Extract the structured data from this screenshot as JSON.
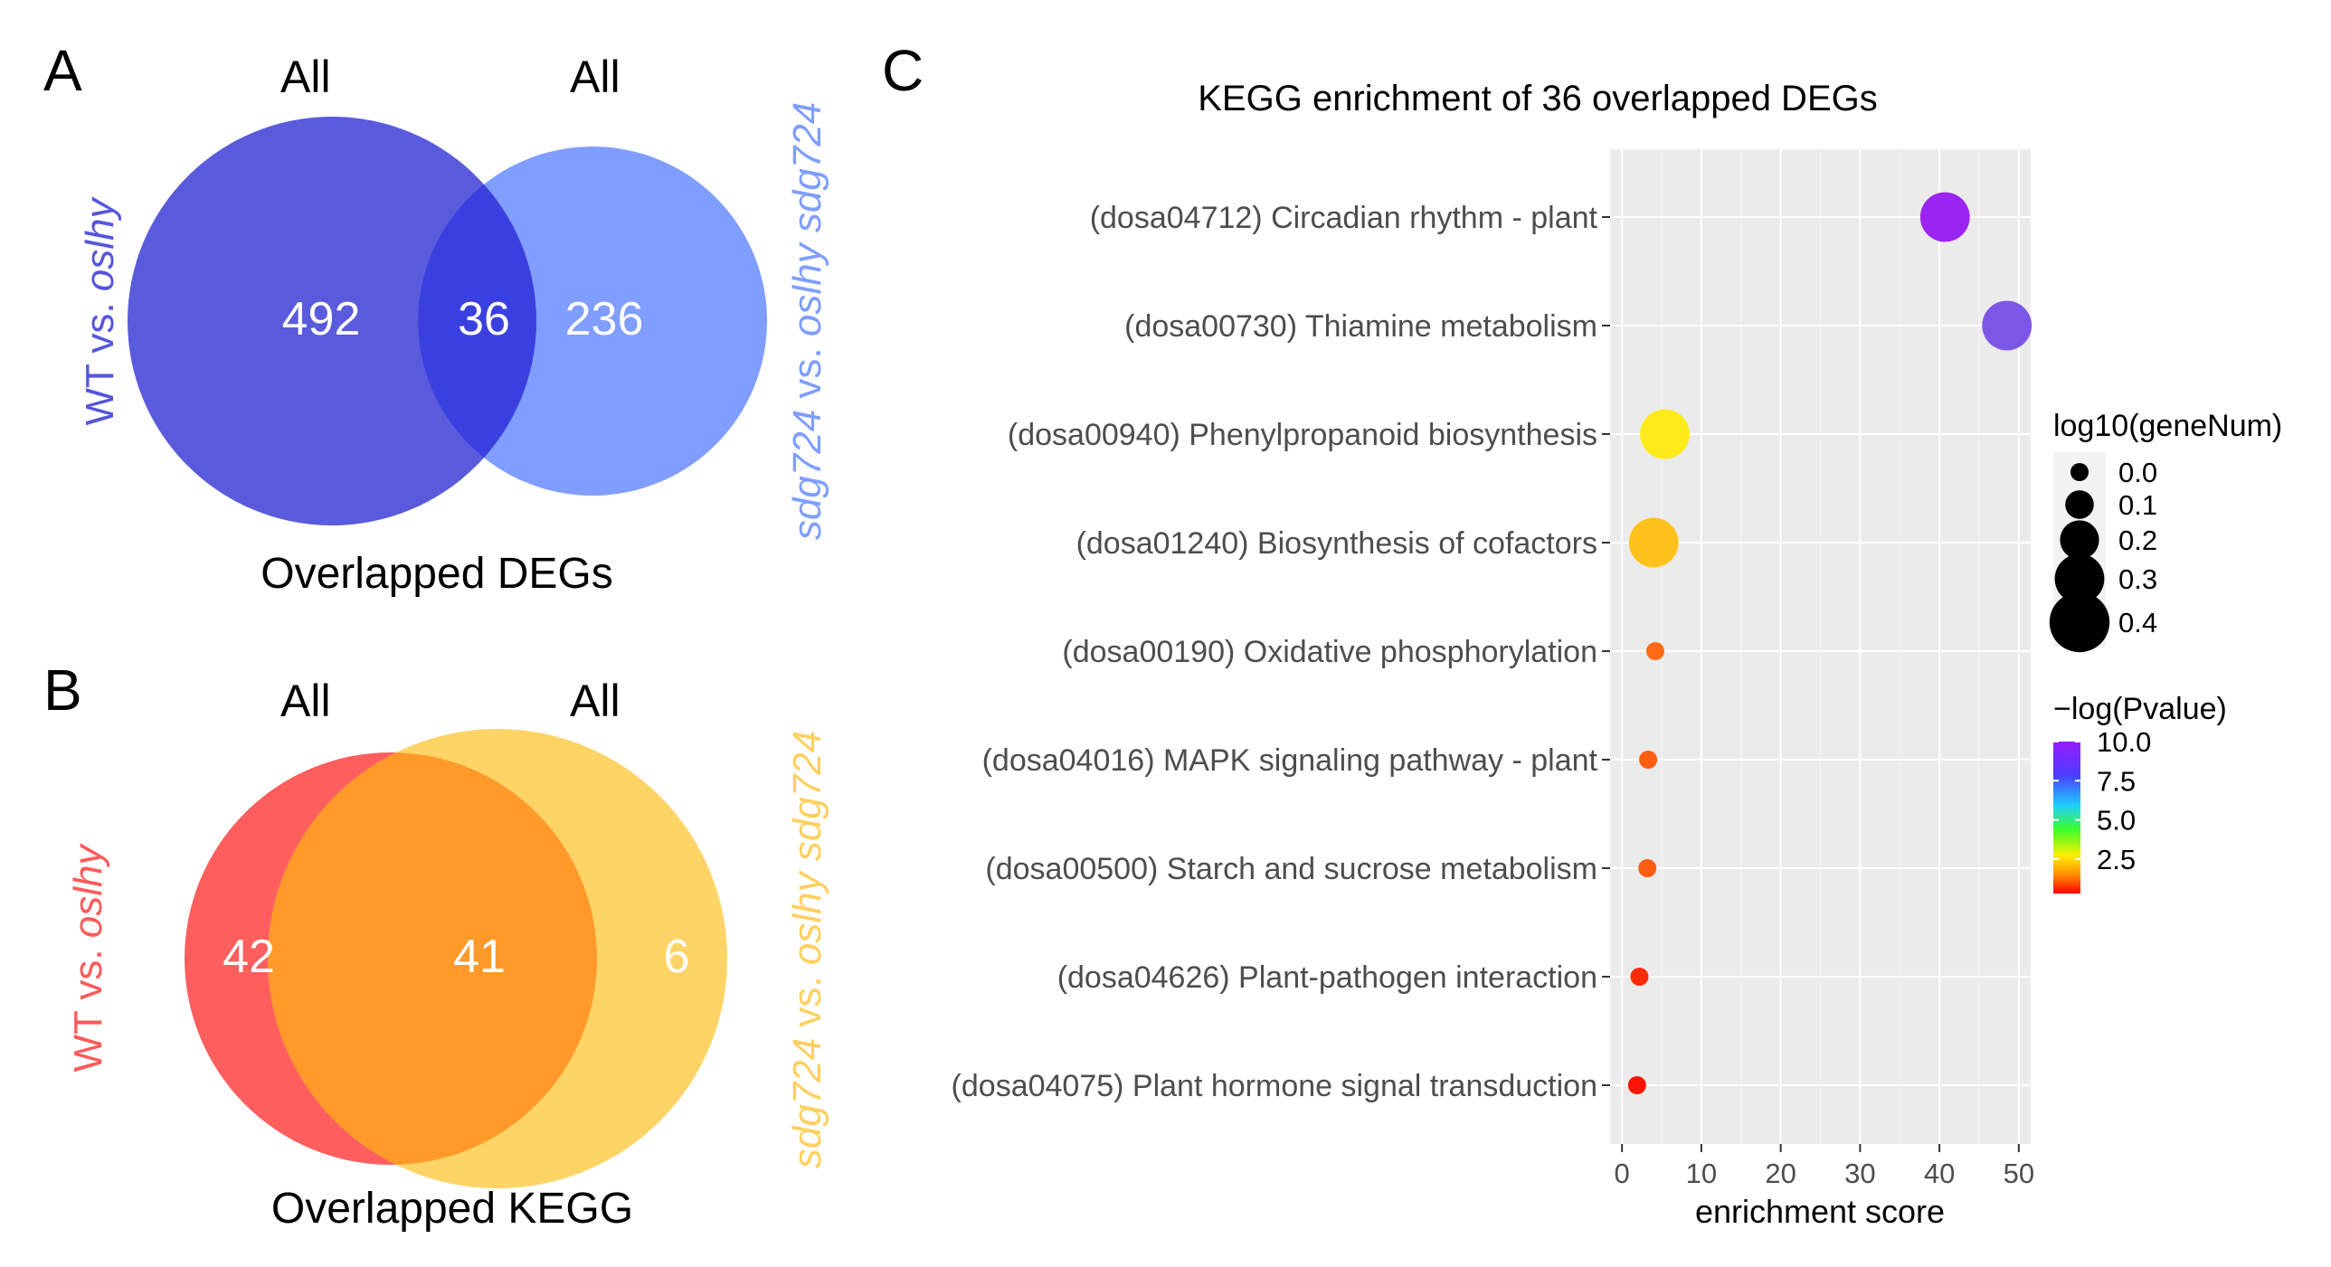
{
  "panel_a": {
    "letter": "A",
    "left_top_label": "All",
    "right_top_label": "All",
    "left_only": "492",
    "overlap": "36",
    "right_only": "236",
    "bottom_label": "Overlapped DEGs",
    "left_label_plain": "WT vs. ",
    "left_label_italic": "oslhy",
    "right_label_italic1": "sdg724",
    "right_label_plain": " vs. ",
    "right_label_italic2": "oslhy sdg724",
    "colors": {
      "left": "#5a5adc",
      "right": "#7f9eff",
      "overlap": "#3a40e0",
      "left_text": "#5555dd",
      "right_text": "#7f9eff"
    }
  },
  "panel_b": {
    "letter": "B",
    "left_top_label": "All",
    "right_top_label": "All",
    "left_only": "42",
    "overlap": "41",
    "right_only": "6",
    "bottom_label": "Overlapped KEGG",
    "left_label_plain": "WT vs. ",
    "left_label_italic": "oslhy",
    "right_label_italic1": "sdg724",
    "right_label_plain": " vs. ",
    "right_label_italic2": "oslhy sdg724",
    "colors": {
      "left": "#ff5e5e",
      "right": "#ffd466",
      "overlap": "#ff9a2a",
      "left_text": "#ff5a5a",
      "right_text": "#ffd060"
    }
  },
  "panel_c": {
    "letter": "C",
    "chart_data": {
      "type": "scatter",
      "title": "KEGG enrichment of 36 overlapped DEGs",
      "xlabel": "enrichment score",
      "ylabel": "",
      "xlim": [
        -1.5,
        51.5
      ],
      "xticks": [
        "0",
        "10",
        "20",
        "30",
        "40",
        "50"
      ],
      "categories": [
        "(dosa04712) Circadian rhythm - plant",
        "(dosa00730) Thiamine metabolism",
        "(dosa00940) Phenylpropanoid biosynthesis",
        "(dosa01240) Biosynthesis of cofactors",
        "(dosa00190) Oxidative phosphorylation",
        "(dosa04016) MAPK signaling pathway - plant",
        "(dosa00500) Starch and sucrose metabolism",
        "(dosa04626) Plant-pathogen interaction",
        "(dosa04075) Plant hormone signal transduction"
      ],
      "enrichment_score": [
        40.7,
        48.5,
        5.4,
        4.0,
        4.2,
        3.3,
        3.2,
        2.2,
        1.9
      ],
      "log10_geneNum": [
        0.3,
        0.3,
        0.3,
        0.3,
        0.0,
        0.0,
        0.0,
        0.0,
        0.0
      ],
      "neg_log_pvalue": [
        9.4,
        8.6,
        2.3,
        1.9,
        1.1,
        0.9,
        0.9,
        0.6,
        0.3
      ],
      "colors": [
        "#9b24f2",
        "#7c57e6",
        "#ffeb1a",
        "#ffc21d",
        "#ff6a16",
        "#ff5e12",
        "#ff5d12",
        "#ff2b08",
        "#ff1205"
      ],
      "size_legend": {
        "title": "log10(geneNum)",
        "labels": [
          "0.0",
          "0.1",
          "0.2",
          "0.3",
          "0.4"
        ],
        "values": [
          0.0,
          0.1,
          0.2,
          0.3,
          0.4
        ]
      },
      "color_legend": {
        "title": "−log(Pvalue)",
        "labels": [
          "10.0",
          "7.5",
          "5.0",
          "2.5"
        ],
        "values": [
          10.0,
          7.5,
          5.0,
          2.5
        ],
        "range": [
          0.3,
          10.0
        ]
      },
      "grid": true,
      "legend_position": "right"
    }
  }
}
